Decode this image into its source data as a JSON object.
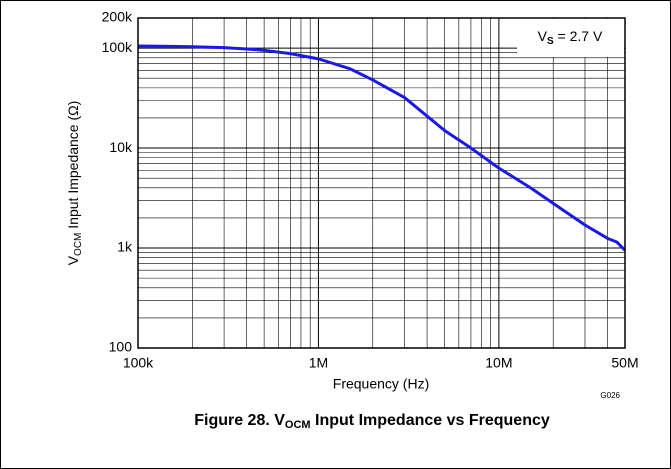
{
  "chart_data": {
    "type": "line",
    "title": [
      "Figure 28. V",
      "OCM",
      " Input Impedance vs Frequency"
    ],
    "ylabel": [
      "V",
      "OCM",
      " Input Impedance (Ω)"
    ],
    "xlabel": "Frequency (Hz)",
    "annotation": [
      "V",
      "S",
      " = 2.7 V"
    ],
    "code": "G026",
    "x": [
      100000,
      150000,
      200000,
      300000,
      400000,
      500000,
      700000,
      1000000,
      1500000,
      2000000,
      3000000,
      5000000,
      7000000,
      10000000,
      15000000,
      20000000,
      30000000,
      40000000,
      45000000,
      50000000
    ],
    "values": [
      105000,
      104000,
      103000,
      101000,
      98000,
      95000,
      88000,
      78000,
      62000,
      48000,
      32000,
      15000,
      10000,
      6300,
      4000,
      2800,
      1700,
      1250,
      1150,
      950
    ],
    "color": "#1a1ae6",
    "xlog": true,
    "ylog": true,
    "xlim": [
      100000,
      50000000
    ],
    "ylim": [
      100,
      200000
    ],
    "xticks": [
      {
        "value": 100000,
        "label": "100k"
      },
      {
        "value": 1000000,
        "label": "1M"
      },
      {
        "value": 10000000,
        "label": "10M"
      },
      {
        "value": 50000000,
        "label": "50M"
      }
    ],
    "yticks": [
      100,
      {
        "value": 1000,
        "label": "1k"
      },
      {
        "value": 10000,
        "label": "10k"
      },
      {
        "value": 100000,
        "label": "100k"
      },
      {
        "value": 200000,
        "label": "200k"
      }
    ],
    "grid": true,
    "minor_grid": true
  }
}
